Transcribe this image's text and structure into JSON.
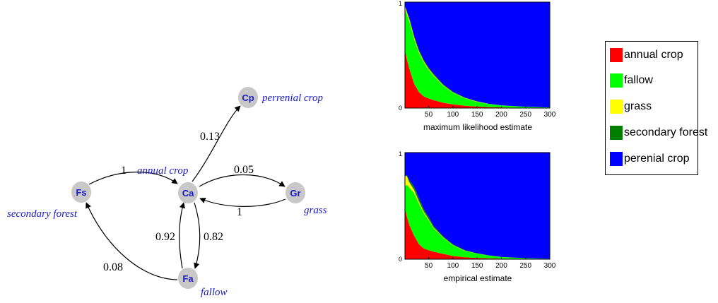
{
  "graph": {
    "nodes": [
      {
        "id": "Fs",
        "label": "Fs",
        "name": "secondary forest"
      },
      {
        "id": "Ca",
        "label": "Ca",
        "name": "annual crop"
      },
      {
        "id": "Cp",
        "label": "Cp",
        "name": "perrenial crop"
      },
      {
        "id": "Gr",
        "label": "Gr",
        "name": "grass"
      },
      {
        "id": "Fa",
        "label": "Fa",
        "name": "fallow"
      }
    ],
    "edges": [
      {
        "from": "Fs",
        "to": "Ca",
        "weight": "1"
      },
      {
        "from": "Ca",
        "to": "Cp",
        "weight": "0.13"
      },
      {
        "from": "Ca",
        "to": "Gr",
        "weight": "0.05"
      },
      {
        "from": "Gr",
        "to": "Ca",
        "weight": "1"
      },
      {
        "from": "Fa",
        "to": "Ca",
        "weight": "0.92"
      },
      {
        "from": "Ca",
        "to": "Fa",
        "weight": "0.82"
      },
      {
        "from": "Fa",
        "to": "Fs",
        "weight": "0.08"
      }
    ],
    "node_fill": "#c8c8c8",
    "label_color": "#1a1acc"
  },
  "chart_data": [
    {
      "type": "area",
      "stacked": true,
      "xlabel": "maximum likelihood estimate",
      "xticks": [
        50,
        100,
        150,
        200,
        250,
        300
      ],
      "xlim": [
        1,
        300
      ],
      "ylim": [
        0,
        1
      ],
      "yticks": [
        0,
        1
      ],
      "x": [
        1,
        5,
        10,
        20,
        30,
        40,
        50,
        60,
        80,
        100,
        125,
        150,
        175,
        200,
        250,
        300
      ],
      "series": [
        {
          "name": "annual crop",
          "color": "#ff0000",
          "values": [
            0.55,
            0.46,
            0.37,
            0.23,
            0.15,
            0.11,
            0.09,
            0.075,
            0.05,
            0.035,
            0.022,
            0.014,
            0.009,
            0.006,
            0.003,
            0.001
          ]
        },
        {
          "name": "fallow",
          "color": "#00ff00",
          "values": [
            0.39,
            0.42,
            0.45,
            0.42,
            0.37,
            0.32,
            0.27,
            0.23,
            0.16,
            0.11,
            0.07,
            0.045,
            0.028,
            0.018,
            0.008,
            0.004
          ]
        },
        {
          "name": "grass",
          "color": "#ffff00",
          "values": [
            0.03,
            0.025,
            0.02,
            0.017,
            0.014,
            0.012,
            0.01,
            0.008,
            0.006,
            0.004,
            0.003,
            0.002,
            0.001,
            0.001,
            0.0005,
            0.0002
          ]
        },
        {
          "name": "secondary forest",
          "color": "#008000",
          "values": [
            0.0,
            0.005,
            0.01,
            0.014,
            0.014,
            0.012,
            0.011,
            0.01,
            0.007,
            0.005,
            0.004,
            0.003,
            0.002,
            0.001,
            0.001,
            0.0005
          ]
        },
        {
          "name": "perenial crop",
          "color": "#0000ff",
          "values": [
            0.03,
            0.09,
            0.15,
            0.319,
            0.452,
            0.546,
            0.619,
            0.677,
            0.777,
            0.846,
            0.901,
            0.936,
            0.96,
            0.974,
            0.9875,
            0.9943
          ]
        }
      ]
    },
    {
      "type": "area",
      "stacked": true,
      "xlabel": "empirical estimate",
      "xticks": [
        50,
        100,
        150,
        200,
        250,
        300
      ],
      "xlim": [
        1,
        300
      ],
      "ylim": [
        0,
        1
      ],
      "yticks": [
        0,
        1
      ],
      "x": [
        1,
        5,
        10,
        20,
        30,
        40,
        50,
        60,
        80,
        100,
        125,
        150,
        175,
        200,
        250,
        300
      ],
      "series": [
        {
          "name": "annual crop",
          "color": "#ff0000",
          "values": [
            0.48,
            0.4,
            0.32,
            0.22,
            0.14,
            0.1,
            0.085,
            0.07,
            0.05,
            0.03,
            0.018,
            0.012,
            0.008,
            0.005,
            0.002,
            0.001
          ]
        },
        {
          "name": "fallow",
          "color": "#00ff00",
          "values": [
            0.2,
            0.3,
            0.35,
            0.4,
            0.38,
            0.33,
            0.28,
            0.22,
            0.15,
            0.1,
            0.06,
            0.04,
            0.025,
            0.015,
            0.007,
            0.003
          ]
        },
        {
          "name": "grass",
          "color": "#ffff00",
          "values": [
            0.1,
            0.08,
            0.05,
            0.03,
            0.02,
            0.015,
            0.01,
            0.008,
            0.005,
            0.003,
            0.002,
            0.001,
            0.001,
            0.0005,
            0.0002,
            0.0001
          ]
        },
        {
          "name": "secondary forest",
          "color": "#008000",
          "values": [
            0.0,
            0.01,
            0.02,
            0.03,
            0.03,
            0.025,
            0.02,
            0.015,
            0.01,
            0.007,
            0.005,
            0.003,
            0.002,
            0.001,
            0.0005,
            0.0002
          ]
        },
        {
          "name": "perenial crop",
          "color": "#0000ff",
          "values": [
            0.22,
            0.21,
            0.26,
            0.32,
            0.43,
            0.53,
            0.605,
            0.687,
            0.785,
            0.86,
            0.915,
            0.944,
            0.964,
            0.978,
            0.9903,
            0.9957
          ]
        }
      ]
    }
  ],
  "legend": {
    "items": [
      {
        "label": "annual crop",
        "color": "#ff0000"
      },
      {
        "label": "fallow",
        "color": "#00ff00"
      },
      {
        "label": "grass",
        "color": "#ffff00"
      },
      {
        "label": "secondary forest",
        "color": "#008000"
      },
      {
        "label": "perenial crop",
        "color": "#0000ff"
      }
    ]
  }
}
